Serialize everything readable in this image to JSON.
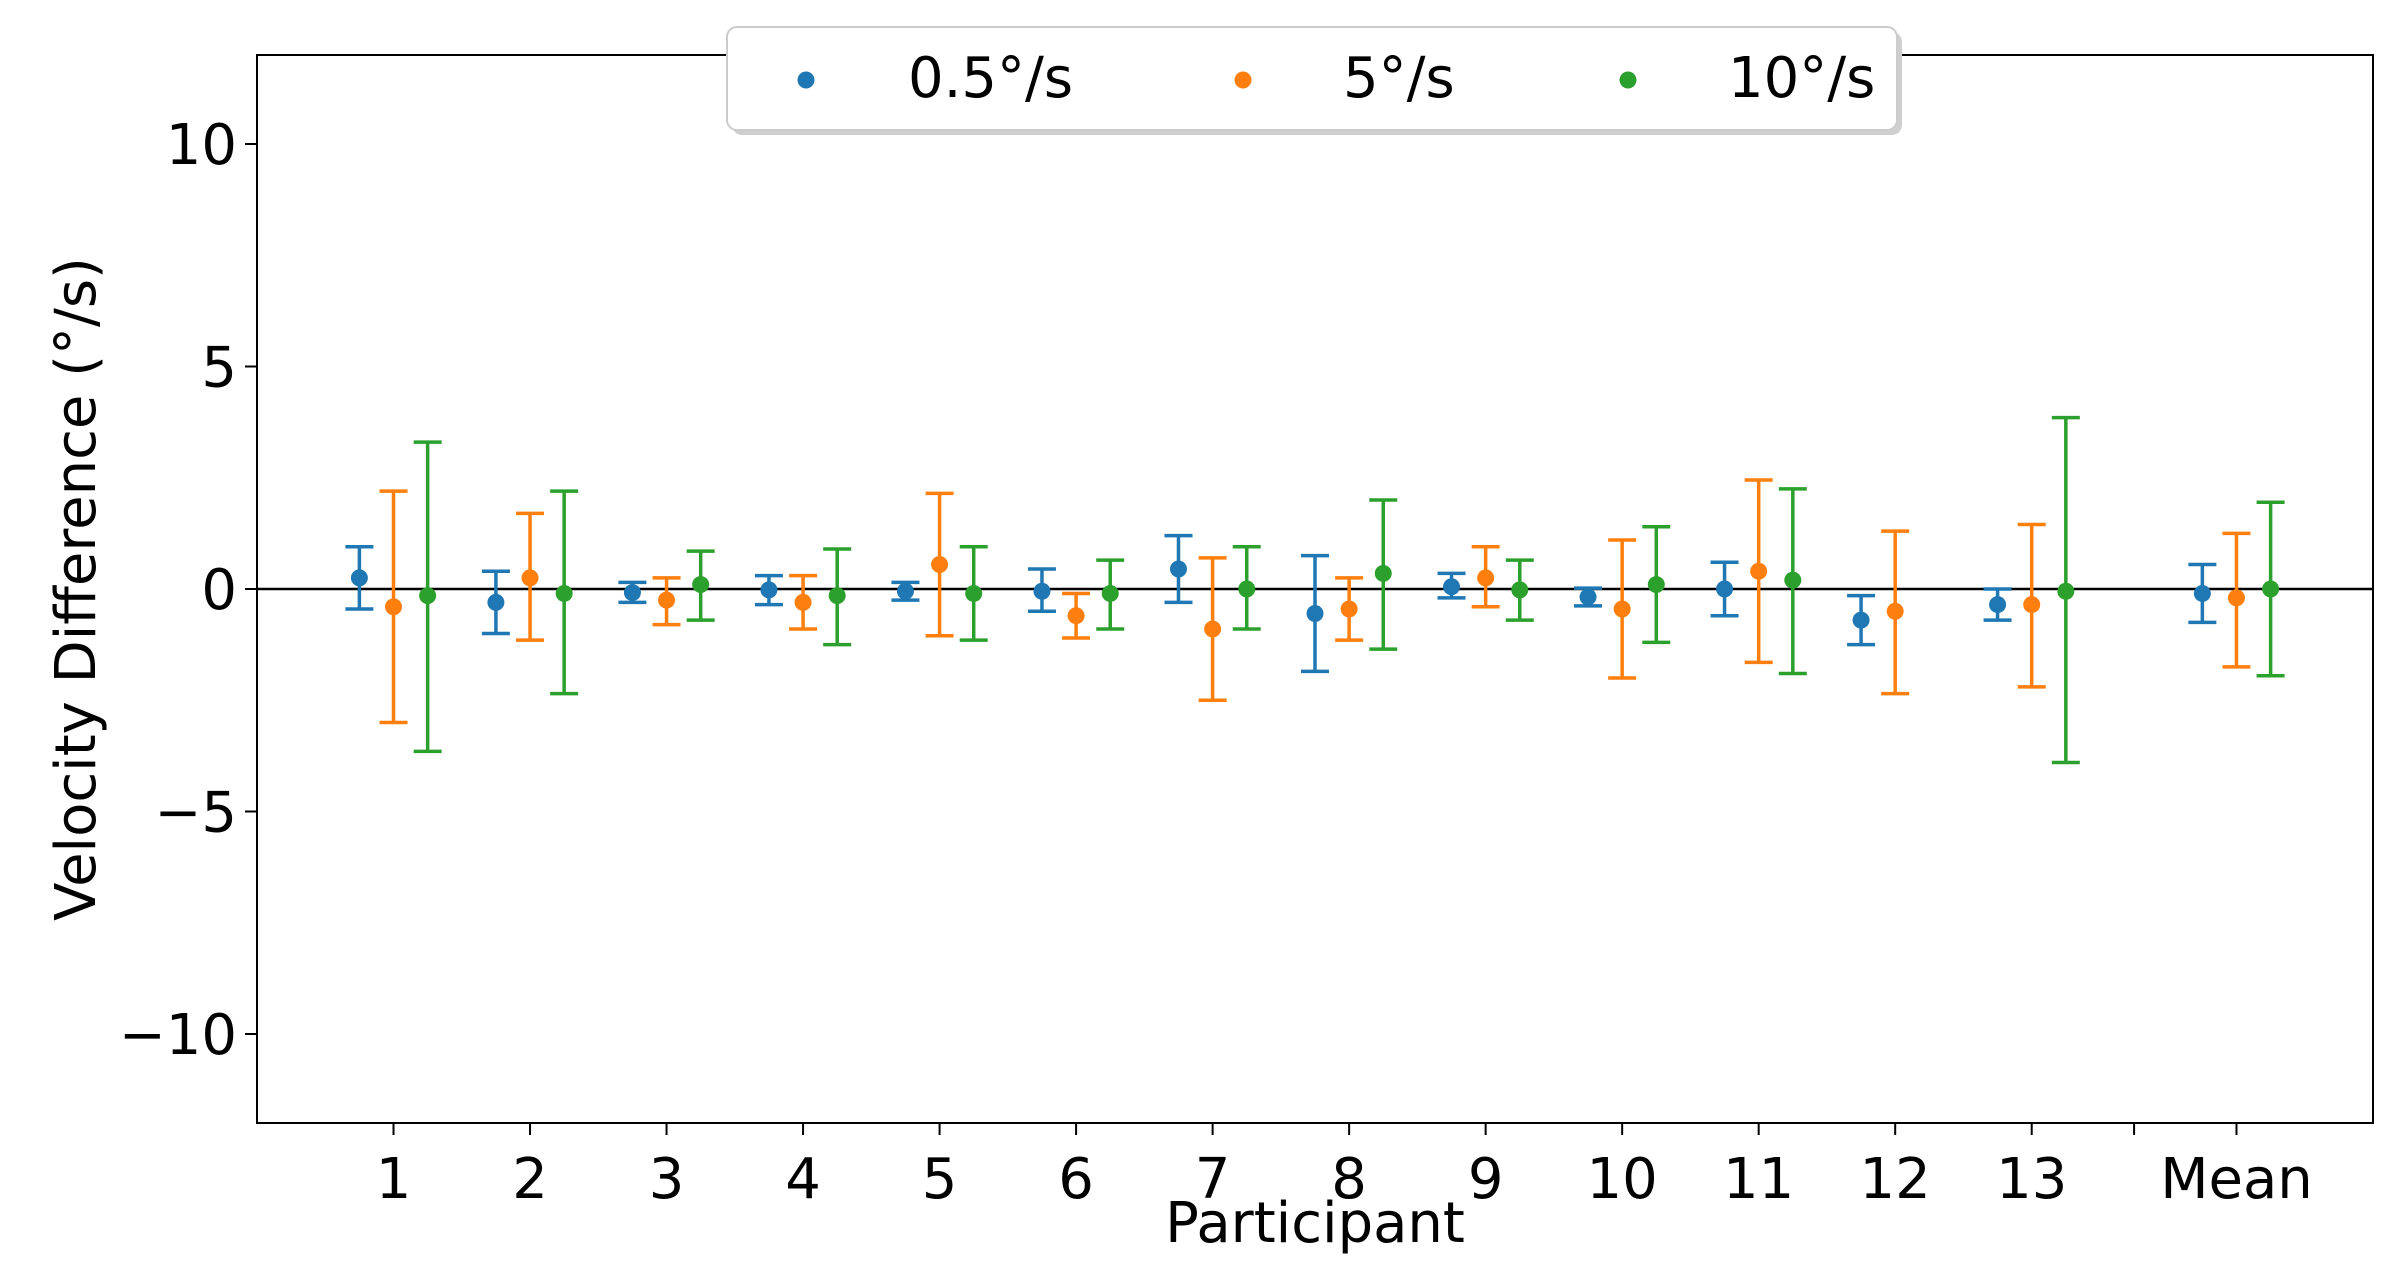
{
  "chart_data": {
    "type": "errorbar",
    "xlabel": "Participant",
    "ylabel": "Velocity Difference (°/s)",
    "ylim": [
      -12,
      12
    ],
    "yticks": [
      -10,
      -5,
      0,
      5,
      10
    ],
    "ytick_labels": [
      "−10",
      "−5",
      "0",
      "5",
      "10"
    ],
    "categories": [
      "1",
      "2",
      "3",
      "4",
      "5",
      "6",
      "7",
      "8",
      "9",
      "10",
      "11",
      "12",
      "13",
      "Mean"
    ],
    "category_positions": [
      1,
      2,
      3,
      4,
      5,
      6,
      7,
      8,
      9,
      10,
      11,
      12,
      13,
      14.5
    ],
    "xlim": [
      0,
      15.5
    ],
    "zero_line": true,
    "grid": false,
    "legend_position": "top-center",
    "series": [
      {
        "name": "0.5°/s",
        "color": "#1f77b4",
        "offset": -0.25,
        "values": [
          0.25,
          -0.3,
          -0.08,
          -0.02,
          -0.05,
          -0.05,
          0.45,
          -0.55,
          0.05,
          -0.18,
          0.0,
          -0.7,
          -0.35,
          -0.1
        ],
        "lower": [
          -0.45,
          -1.0,
          -0.3,
          -0.35,
          -0.25,
          -0.5,
          -0.3,
          -1.85,
          -0.2,
          -0.38,
          -0.6,
          -1.25,
          -0.7,
          -0.75
        ],
        "upper": [
          0.95,
          0.4,
          0.15,
          0.3,
          0.15,
          0.45,
          1.2,
          0.75,
          0.35,
          0.02,
          0.6,
          -0.15,
          0.0,
          0.55
        ]
      },
      {
        "name": "5°/s",
        "color": "#ff7f0e",
        "offset": 0.0,
        "values": [
          -0.4,
          0.25,
          -0.25,
          -0.3,
          0.55,
          -0.6,
          -0.9,
          -0.45,
          0.25,
          -0.45,
          0.4,
          -0.5,
          -0.35,
          -0.2
        ],
        "lower": [
          -3.0,
          -1.15,
          -0.8,
          -0.9,
          -1.05,
          -1.1,
          -2.5,
          -1.15,
          -0.4,
          -2.0,
          -1.65,
          -2.35,
          -2.2,
          -1.75
        ],
        "upper": [
          2.2,
          1.7,
          0.25,
          0.3,
          2.15,
          -0.1,
          0.7,
          0.25,
          0.95,
          1.1,
          2.45,
          1.3,
          1.45,
          1.25
        ]
      },
      {
        "name": "10°/s",
        "color": "#2ca02c",
        "offset": 0.25,
        "values": [
          -0.15,
          -0.1,
          0.1,
          -0.15,
          -0.1,
          -0.1,
          0.0,
          0.35,
          -0.02,
          0.1,
          0.2,
          null,
          -0.05,
          0.0
        ],
        "lower": [
          -3.65,
          -2.35,
          -0.7,
          -1.25,
          -1.15,
          -0.9,
          -0.9,
          -1.35,
          -0.7,
          -1.2,
          -1.9,
          null,
          -3.9,
          -1.95
        ],
        "upper": [
          3.3,
          2.2,
          0.85,
          0.9,
          0.95,
          0.65,
          0.95,
          2.0,
          0.65,
          1.4,
          2.25,
          null,
          3.85,
          1.95
        ]
      }
    ]
  }
}
